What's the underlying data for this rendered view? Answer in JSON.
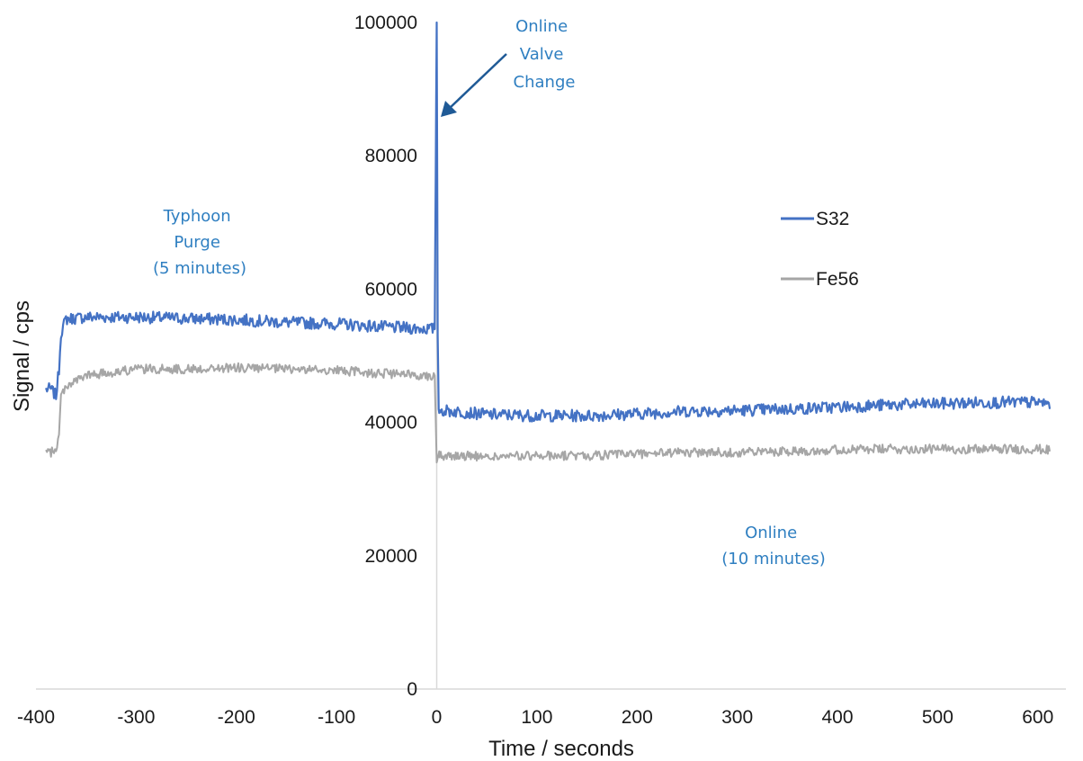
{
  "chart_data": {
    "type": "line",
    "xlabel": "Time / seconds",
    "ylabel": "Signal / cps",
    "xlim": [
      -400,
      650
    ],
    "ylim": [
      0,
      100000
    ],
    "xticks": [
      -400,
      -300,
      -200,
      -100,
      0,
      100,
      200,
      300,
      400,
      500,
      600
    ],
    "yticks": [
      0,
      20000,
      40000,
      60000,
      80000,
      100000
    ],
    "grid": false,
    "legend_position": "right",
    "series": [
      {
        "name": "S32",
        "color": "#4472c4",
        "x": [
          -390,
          -385,
          -380,
          -377,
          -375,
          -370,
          -350,
          -300,
          -250,
          -200,
          -150,
          -100,
          -50,
          -2,
          0,
          1,
          2,
          5,
          30,
          50,
          100,
          150,
          200,
          250,
          300,
          350,
          400,
          450,
          500,
          550,
          600,
          612
        ],
        "values": [
          45000,
          45000,
          44000,
          48000,
          53500,
          55500,
          55800,
          55800,
          55600,
          55400,
          55000,
          54800,
          54300,
          54000,
          100000,
          53000,
          42000,
          41800,
          41500,
          41200,
          41000,
          41000,
          41300,
          41700,
          41800,
          42000,
          42300,
          42600,
          42800,
          43000,
          43000,
          42800
        ]
      },
      {
        "name": "Fe56",
        "color": "#a6a6a6",
        "x": [
          -390,
          -385,
          -380,
          -377,
          -375,
          -370,
          -350,
          -300,
          -250,
          -200,
          -150,
          -100,
          -50,
          -2,
          0,
          2,
          5,
          30,
          50,
          100,
          150,
          200,
          250,
          300,
          350,
          400,
          450,
          500,
          550,
          600,
          612
        ],
        "values": [
          35500,
          35500,
          36000,
          38000,
          44000,
          45500,
          47000,
          48000,
          48000,
          48200,
          48000,
          47800,
          47300,
          47000,
          34000,
          35300,
          35000,
          35000,
          34800,
          35000,
          35000,
          35300,
          35500,
          35500,
          35700,
          35900,
          36000,
          36000,
          36000,
          36000,
          35800
        ]
      }
    ],
    "annotations": [
      {
        "id": "valve",
        "lines": [
          "Online",
          "Valve",
          "Change"
        ]
      },
      {
        "id": "purge",
        "lines": [
          "Typhoon",
          "Purge",
          "(5 minutes)"
        ]
      },
      {
        "id": "online",
        "lines": [
          "Online",
          "(10 minutes)"
        ]
      }
    ]
  }
}
